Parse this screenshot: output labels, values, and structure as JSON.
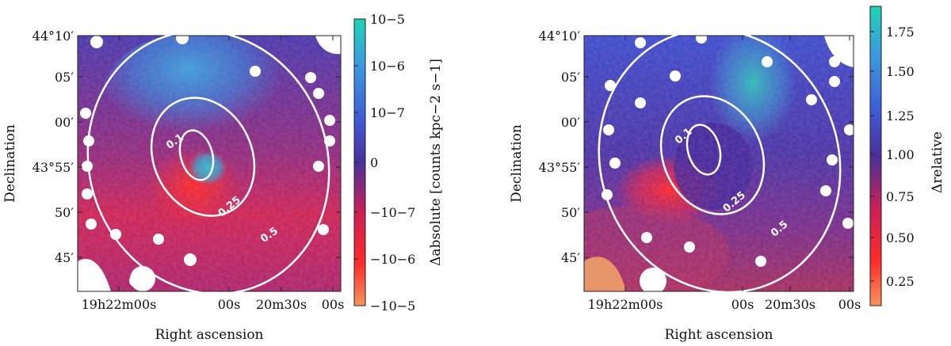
{
  "chart_data": [
    {
      "type": "heatmap",
      "panel": "left",
      "xlabel": "Right ascension",
      "ylabel": "Declination",
      "x_ticks": [
        {
          "main": "19h22m00s"
        },
        {
          "main": "00s"
        },
        {
          "main": "20m30s"
        },
        {
          "main": "00s"
        }
      ],
      "y_ticks": [
        "44°10′",
        "05′",
        "00′",
        "43°55′",
        "50′",
        "45′"
      ],
      "colorbar": {
        "label": "Δabsolute [counts kpc−2 s−1]",
        "ticks": [
          "10−5",
          "10−6",
          "10−7",
          "0",
          "−10−7",
          "−10−6",
          "−10−5"
        ],
        "colormap": [
          "#1fd3b3",
          "#3a9ee0",
          "#3f5bd8",
          "#4a2f9c",
          "#cf1f55",
          "#ff2a2a",
          "#f7955a"
        ]
      },
      "contours": [
        "0.1",
        "0.25",
        "0.5"
      ]
    },
    {
      "type": "heatmap",
      "panel": "right",
      "xlabel": "Right ascension",
      "ylabel": "Declination",
      "x_ticks": [
        {
          "main": "19h22m00s"
        },
        {
          "main": "00s"
        },
        {
          "main": "20m30s"
        },
        {
          "main": "00s"
        }
      ],
      "y_ticks": [
        "44°10′",
        "05′",
        "00′",
        "43°55′",
        "50′",
        "45′"
      ],
      "colorbar": {
        "label": "Δrelative",
        "ticks": [
          "1.75",
          "1.50",
          "1.25",
          "1.00",
          "0.75",
          "0.50",
          "0.25"
        ],
        "range": [
          0.12,
          1.9
        ],
        "colormap": [
          "#1fd3b3",
          "#3a9ee0",
          "#3f5bd8",
          "#4a2f9c",
          "#cf1f55",
          "#ff2a2a",
          "#f7955a"
        ]
      },
      "contours": [
        "0.1",
        "0.25",
        "0.5"
      ]
    }
  ]
}
